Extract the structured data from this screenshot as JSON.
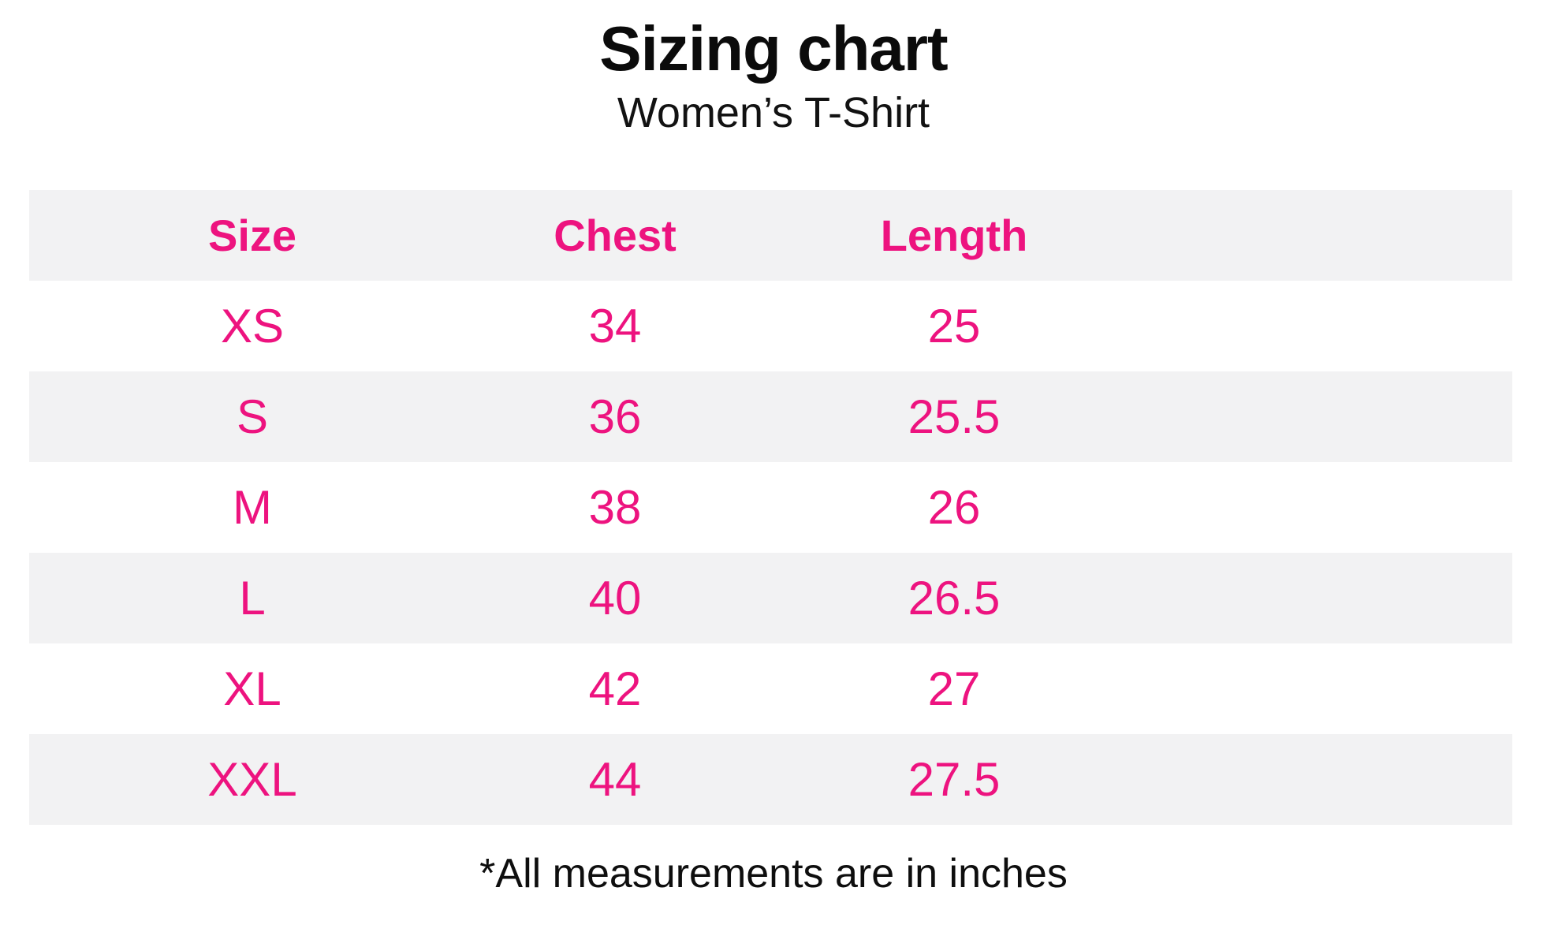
{
  "page": {
    "title": "Sizing chart",
    "subtitle": "Women’s T-Shirt",
    "footnote": "*All measurements are in inches"
  },
  "colors": {
    "accent_pink": "#ED137F",
    "alt_row_bg": "#F2F2F3",
    "text_black": "#0b0b0b",
    "page_bg": "#ffffff"
  },
  "chart_data": {
    "type": "table",
    "title": "Sizing chart",
    "subtitle": "Women’s T-Shirt",
    "note": "*All measurements are in inches",
    "units": "inches",
    "columns": [
      "Size",
      "Chest",
      "Length"
    ],
    "rows": [
      [
        "XS",
        "34",
        "25"
      ],
      [
        "S",
        "36",
        "25.5"
      ],
      [
        "M",
        "38",
        "26"
      ],
      [
        "L",
        "40",
        "26.5"
      ],
      [
        "XL",
        "42",
        "27"
      ],
      [
        "XXL",
        "44",
        "27.5"
      ]
    ],
    "layout": {
      "striped": true,
      "header_stripe": true,
      "stripe_color": "#F2F2F3",
      "text_color": "#ED137F"
    }
  }
}
